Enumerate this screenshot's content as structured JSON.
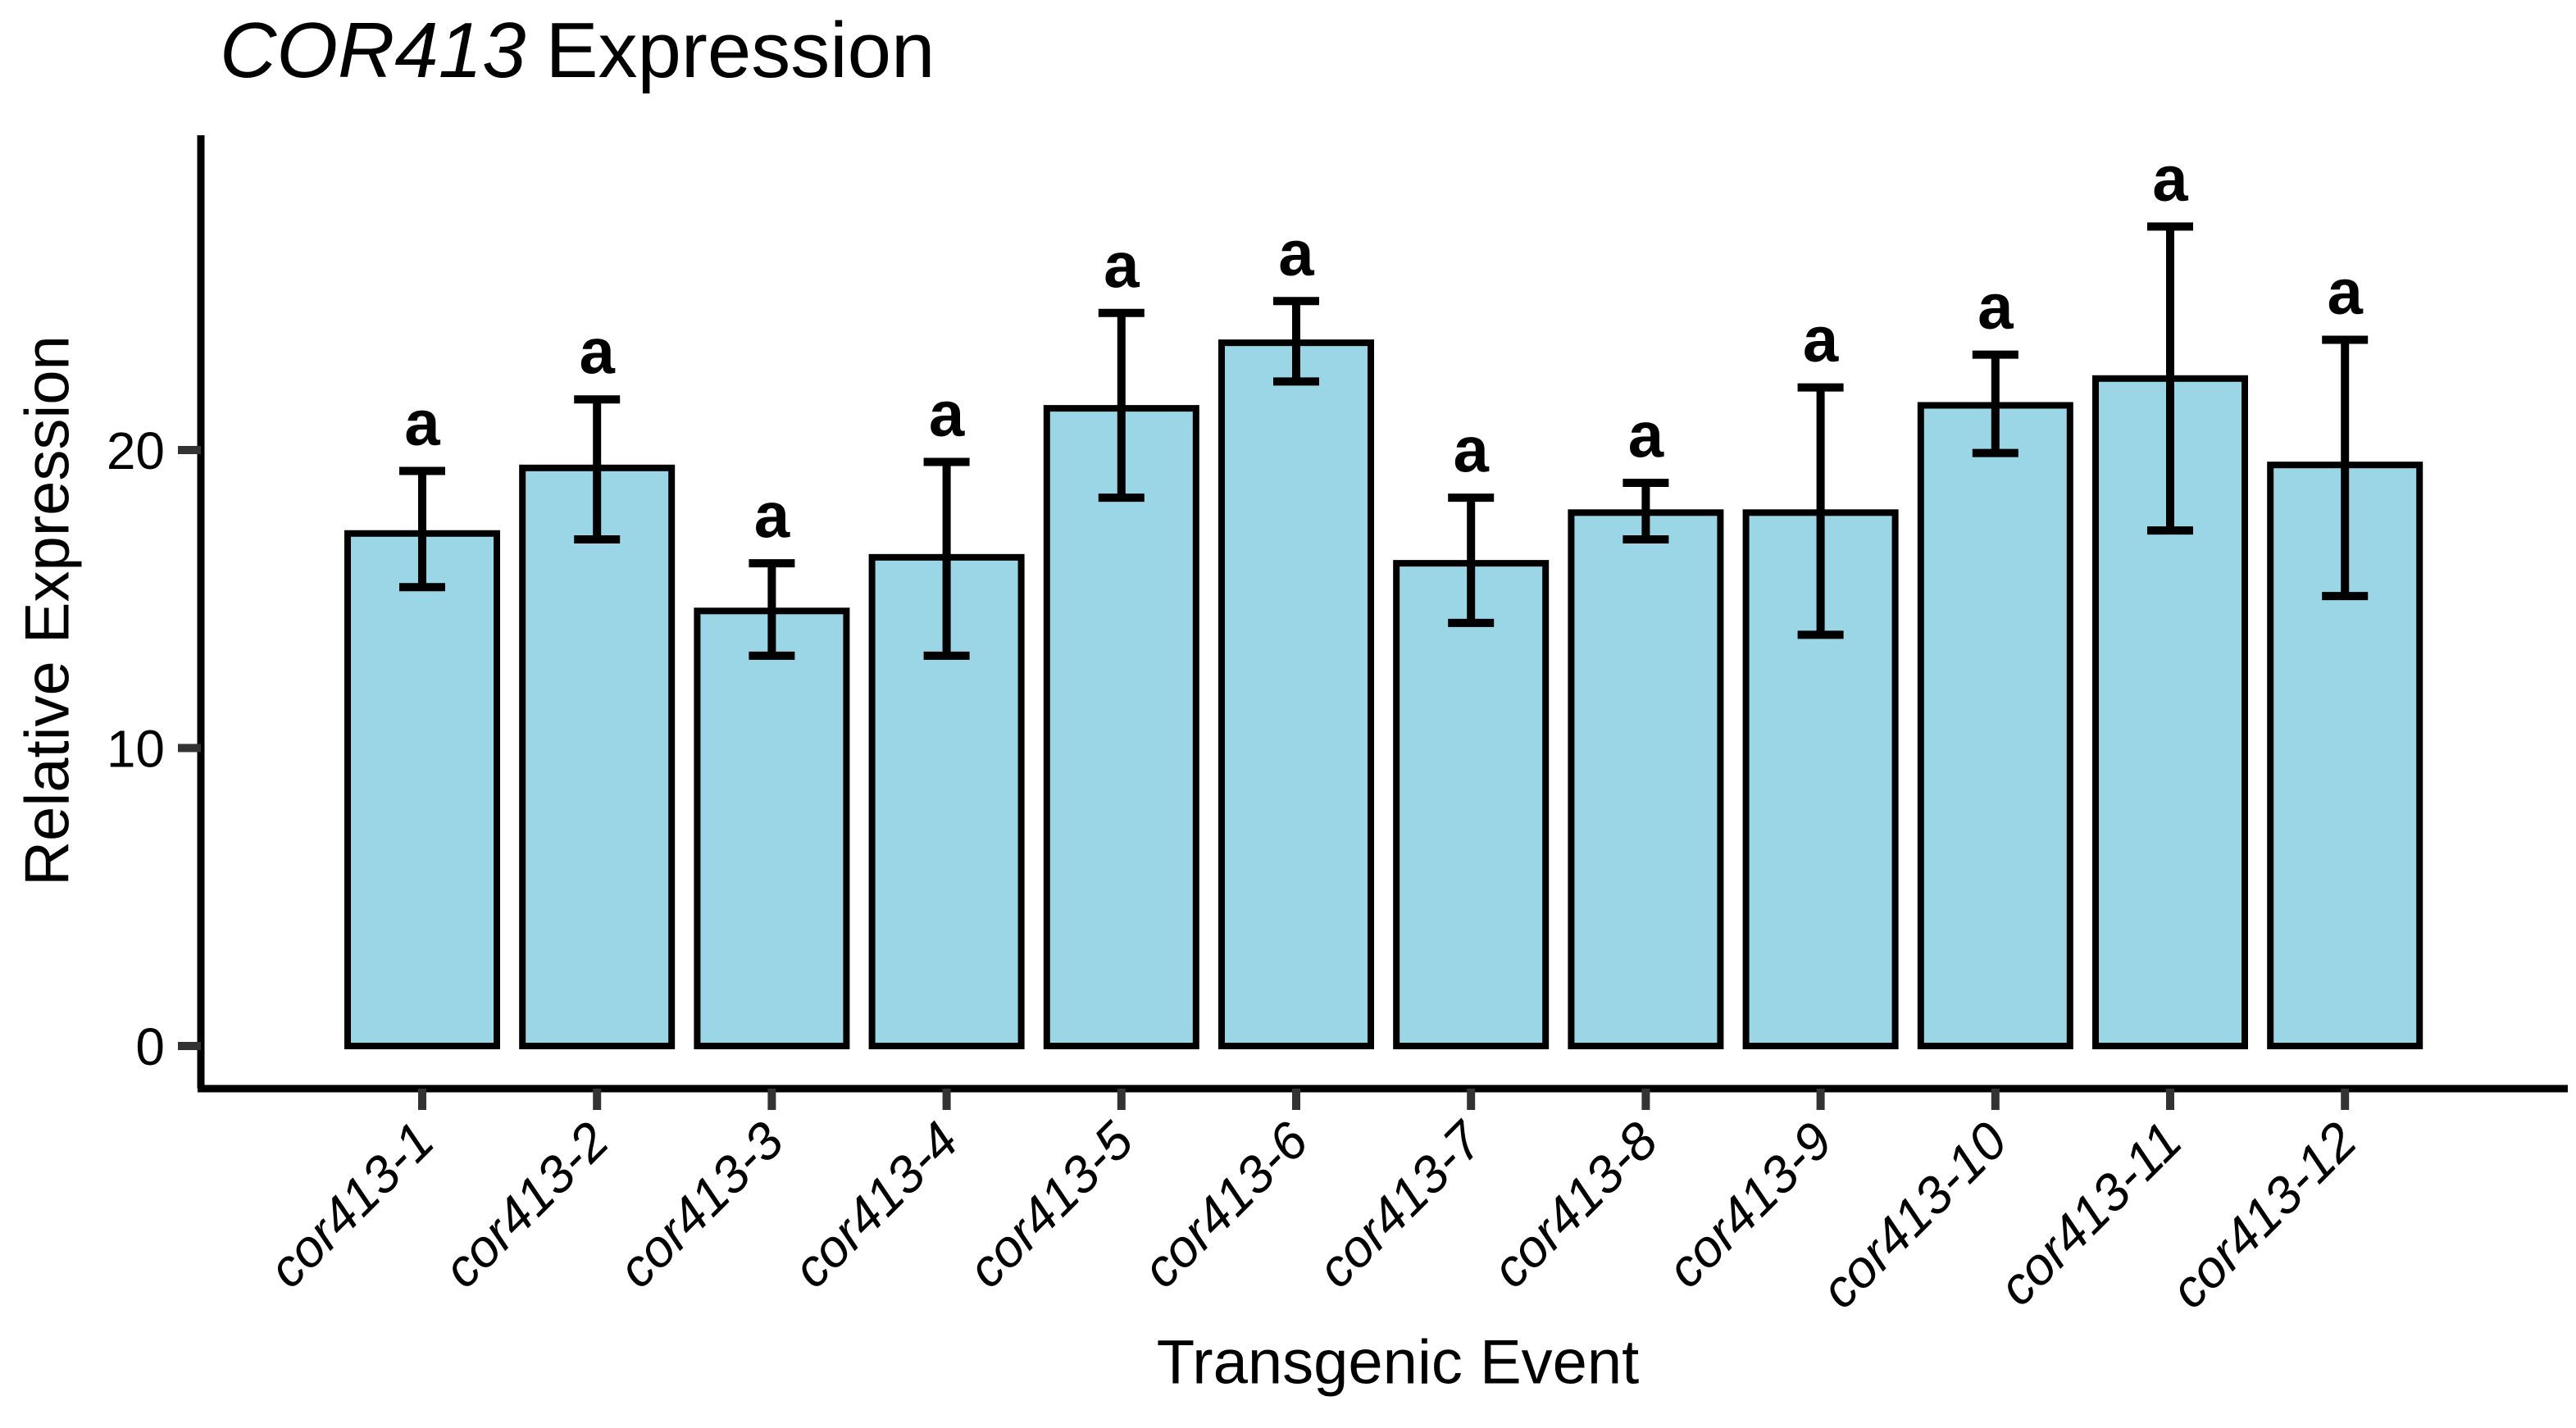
{
  "chart_data": {
    "type": "bar",
    "title_italic": "COR413",
    "title_rest": "Expression",
    "xlabel": "Transgenic Event",
    "ylabel": "Relative Expression",
    "categories": [
      "cor413-1",
      "cor413-2",
      "cor413-3",
      "cor413-4",
      "cor413-5",
      "cor413-6",
      "cor413-7",
      "cor413-8",
      "cor413-9",
      "cor413-10",
      "cor413-11",
      "cor413-12"
    ],
    "values": [
      17.2,
      19.4,
      14.6,
      16.4,
      21.4,
      23.6,
      16.2,
      17.9,
      17.9,
      21.5,
      22.4,
      19.5
    ],
    "error_upper": [
      19.3,
      21.7,
      16.2,
      19.6,
      24.6,
      25.0,
      18.4,
      18.9,
      22.1,
      23.2,
      27.5,
      23.7
    ],
    "error_lower": [
      15.4,
      17.0,
      13.1,
      13.1,
      18.4,
      22.3,
      14.2,
      17.0,
      13.8,
      19.9,
      17.3,
      15.1
    ],
    "sig_labels": [
      "a",
      "a",
      "a",
      "a",
      "a",
      "a",
      "a",
      "a",
      "a",
      "a",
      "a",
      "a"
    ],
    "yticks": [
      0,
      10,
      20
    ],
    "ylim": [
      0,
      30.5
    ],
    "grid": false,
    "legend": "none",
    "bar_fill": "#9AD6E5",
    "bar_stroke": "#000000",
    "axis_color": "#000000",
    "tick_color": "#333333",
    "text_color": "#000000"
  }
}
